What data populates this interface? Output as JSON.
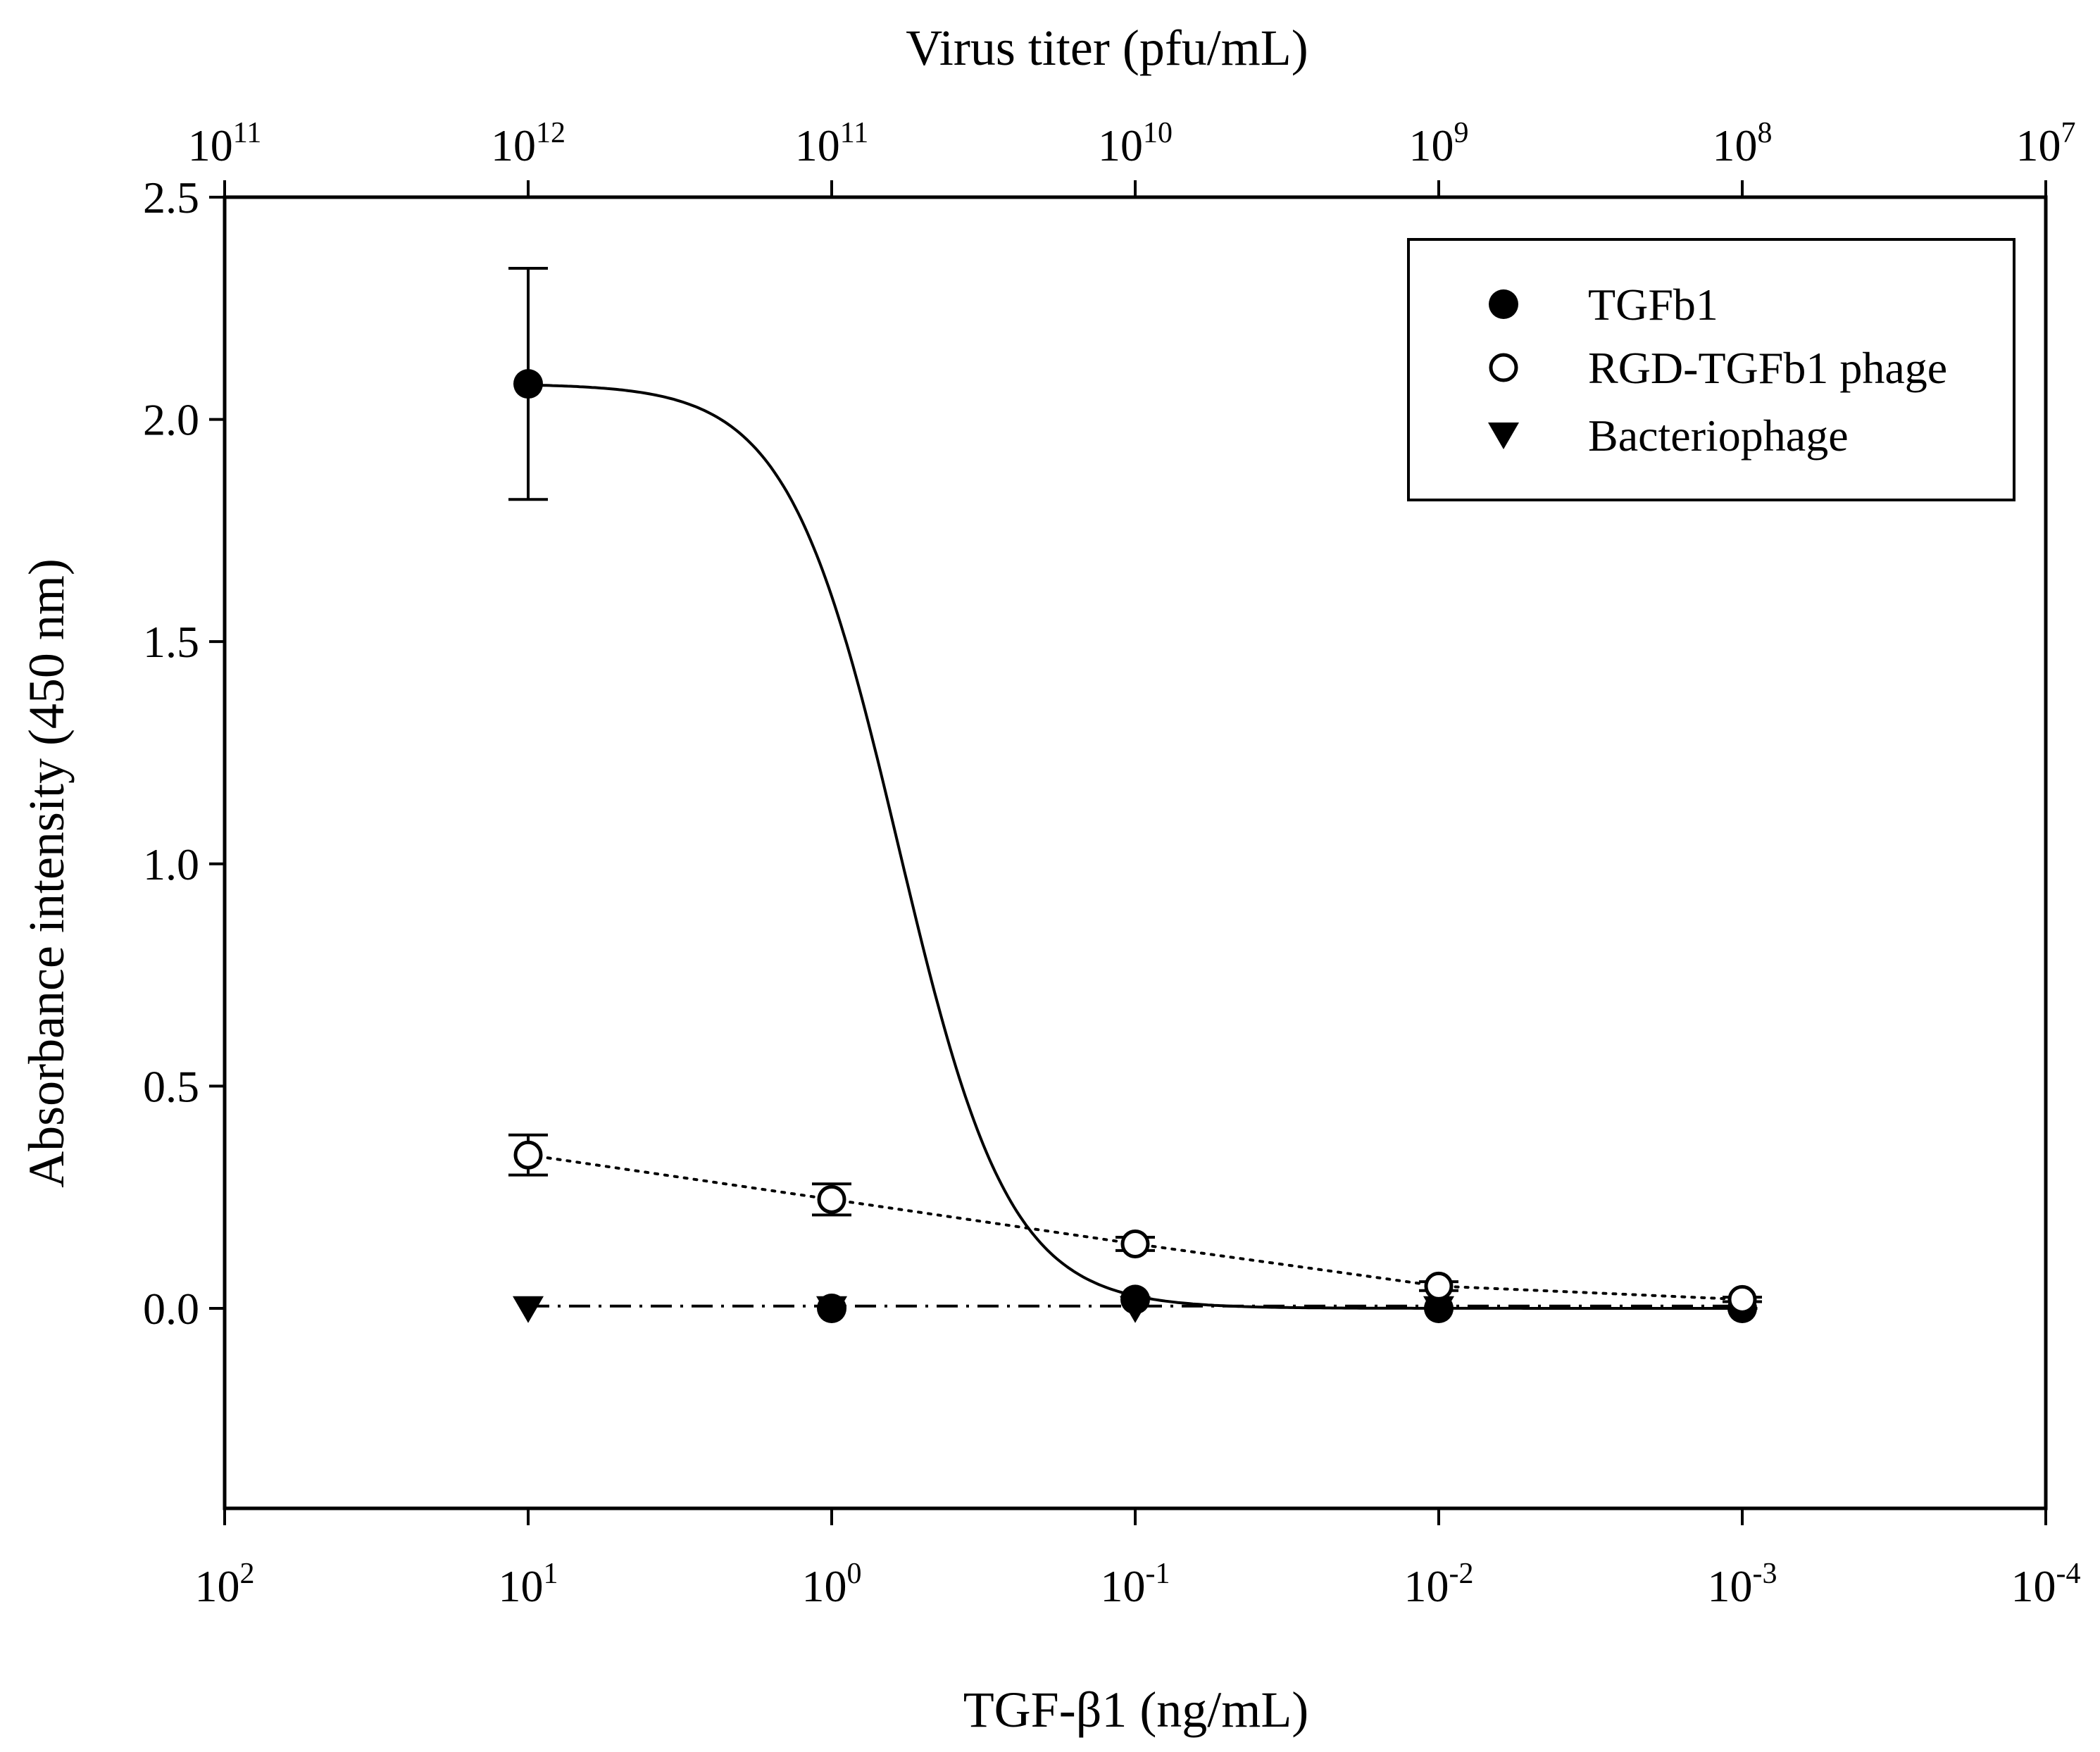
{
  "chart_data": {
    "type": "scatter",
    "title": "",
    "xlabel": "TGF-β1 (ng/mL)",
    "ylabel": "Absorbance intensity (450 nm)",
    "top_xlabel": "Virus titer (pfu/mL)",
    "x_scale": "log",
    "x_reversed": true,
    "xlim_log10": [
      2,
      -4
    ],
    "ylim": [
      -0.45,
      2.5
    ],
    "y_ticks": [
      "0.0",
      "0.5",
      "1.0",
      "1.5",
      "2.0",
      "2.5"
    ],
    "x_ticks": [
      {
        "base": "10",
        "exp": "2"
      },
      {
        "base": "10",
        "exp": "1"
      },
      {
        "base": "10",
        "exp": "0"
      },
      {
        "base": "10",
        "exp": "-1"
      },
      {
        "base": "10",
        "exp": "-2"
      },
      {
        "base": "10",
        "exp": "-3"
      },
      {
        "base": "10",
        "exp": "-4"
      }
    ],
    "top_x_ticks": [
      {
        "base": "10",
        "exp": "11"
      },
      {
        "base": "10",
        "exp": "12"
      },
      {
        "base": "10",
        "exp": "11"
      },
      {
        "base": "10",
        "exp": "10"
      },
      {
        "base": "10",
        "exp": "9"
      },
      {
        "base": "10",
        "exp": "8"
      },
      {
        "base": "10",
        "exp": "7"
      }
    ],
    "legend_position": "top-right",
    "series": [
      {
        "name": "TGFb1",
        "marker": "filled-circle",
        "line_style": "solid",
        "fit": "sigmoid",
        "x": [
          10,
          1,
          0.1,
          0.01,
          0.001
        ],
        "y": [
          2.08,
          0.0,
          0.02,
          0.0,
          0.0
        ],
        "err": [
          0.26,
          0,
          0,
          0,
          0
        ]
      },
      {
        "name": "RGD-TGFb1 phage",
        "marker": "open-circle",
        "line_style": "dotted",
        "x": [
          10,
          1,
          0.1,
          0.01,
          0.001
        ],
        "y": [
          0.345,
          0.245,
          0.145,
          0.05,
          0.02
        ],
        "err": [
          0.045,
          0.035,
          0.015,
          0.01,
          0.005
        ]
      },
      {
        "name": "Bacteriophage",
        "marker": "filled-triangle-down",
        "line_style": "dash-dot",
        "x": [
          10,
          1,
          0.1,
          0.01,
          0.001
        ],
        "y": [
          0.005,
          0.005,
          0.005,
          0.005,
          0.005
        ],
        "err": [
          0,
          0,
          0,
          0,
          0
        ]
      }
    ]
  }
}
